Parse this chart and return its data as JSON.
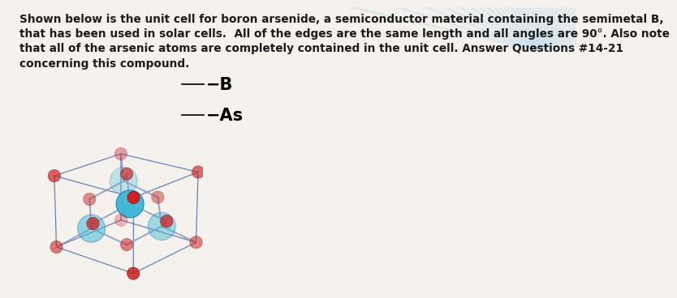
{
  "title_text": "Shown below is the unit cell for boron arsenide, a semiconductor material containing the semimetal B,\nthat has been used in solar cells.  All of the edges are the same length and all angles are 90°. Also note\nthat all of the arsenic atoms are completely contained in the unit cell. Answer Questions #14-21\nconcerning this compound.",
  "label_B": "−B",
  "label_As": "−As",
  "B_color": "#cc2222",
  "As_color": "#44b8d8",
  "bond_color": "#8899bb",
  "edge_color": "#4466aa",
  "bg_color": "#f5f2ee",
  "text_color": "#1a1a1a",
  "B_size": 120,
  "As_size": 600,
  "title_fontsize": 9.8,
  "label_fontsize": 15,
  "fig_width": 7.0,
  "fig_height": 3.32,
  "sunburst_color": "#c8e0ec",
  "sunburst_bg": "#f0ede8"
}
